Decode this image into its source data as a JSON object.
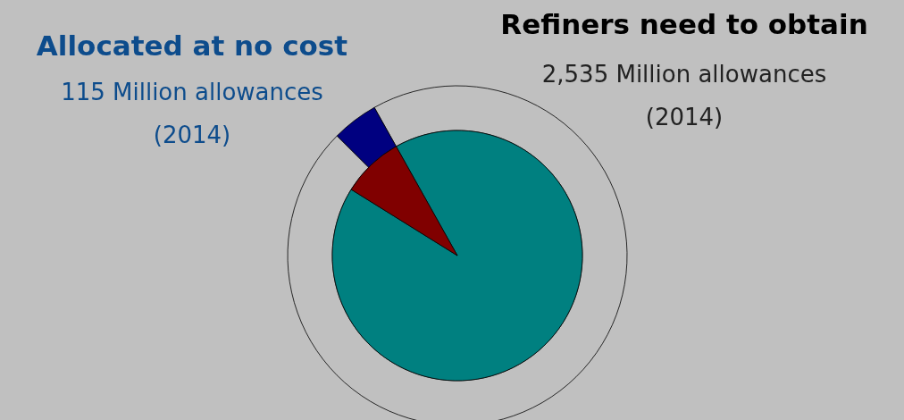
{
  "chart_data": {
    "type": "pie",
    "categories": [
      null,
      null
    ],
    "series": [
      {
        "values": [
          92,
          8
        ],
        "colors": [
          "#008080",
          "#800000"
        ]
      },
      {
        "values": [
          95.6,
          4.4
        ],
        "colors": [
          "#c0c0c0",
          "#000080"
        ]
      }
    ],
    "annotations": [
      "Allocated at no cost",
      "115 Million allowances (2014)",
      "Refiners need to obtain",
      "2,535 Million allowances (2014)"
    ]
  }
}
